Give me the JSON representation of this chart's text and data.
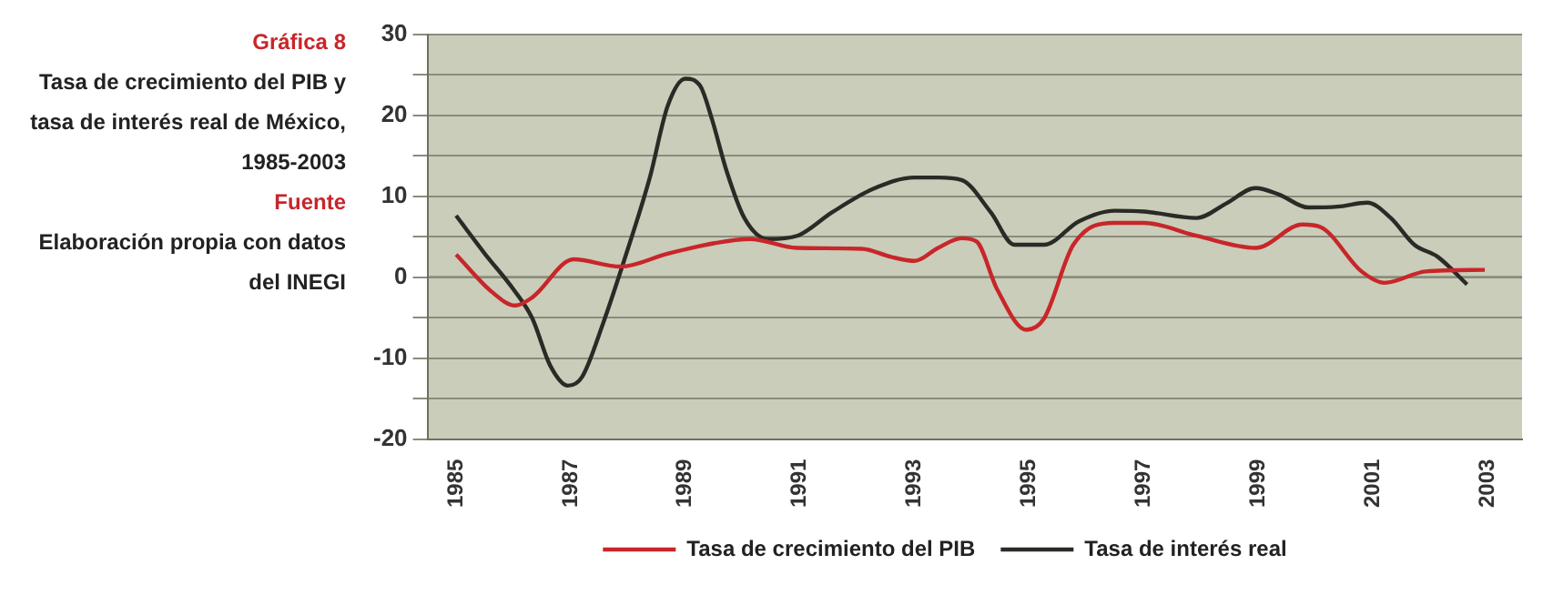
{
  "chart_data": {
    "type": "line",
    "title": "Gráfica 8",
    "subtitle": "Tasa de crecimiento del PIB y tasa de interés real de México, 1985-2003",
    "annotations": [
      "Fuente",
      "Elaboración propia con datos del INEGI"
    ],
    "series": [
      {
        "name": "Tasa de crecimiento del PIB",
        "color": "#c8262a",
        "x": [
          1985,
          1985.62,
          1986.03,
          1986.33,
          1987.05,
          1987.87,
          1988.69,
          1989.51,
          1990.13,
          1990.95,
          1992.08,
          1992.59,
          1993,
          1993.41,
          1993.82,
          1994.08,
          1994.44,
          1994.95,
          1995.26,
          1995.77,
          1996.49,
          1997,
          1997.92,
          1998.95,
          1999.77,
          2000.08,
          2000.8,
          2001.2,
          2001.92,
          2002.95
        ],
        "values": [
          2.8,
          -1.8,
          -3.5,
          -2.5,
          2.2,
          1.3,
          2.9,
          4.2,
          4.7,
          3.6,
          3.5,
          2.5,
          2,
          3.6,
          4.8,
          4.4,
          -1.5,
          -6.5,
          -5.1,
          4,
          6.7,
          6.7,
          5.1,
          3.6,
          6.5,
          6.2,
          0.7,
          -0.7,
          0.7,
          0.9
        ]
      },
      {
        "name": "Tasa de interés real",
        "color": "#2a2a26",
        "x": [
          1985,
          1985.5,
          1986,
          1986.33,
          1986.64,
          1986.95,
          1987.2,
          1987.56,
          1987.97,
          1988.38,
          1988.69,
          1989,
          1989.26,
          1989.46,
          1989.72,
          1990.03,
          1990.44,
          1990.95,
          1991.56,
          1992.28,
          1993,
          1993.41,
          1993.82,
          1994.33,
          1994.74,
          1995.26,
          1995.87,
          1996.49,
          1997,
          1997.92,
          1998.44,
          1998.95,
          1999.36,
          1999.87,
          2000.38,
          2000.9,
          2001.31,
          2001.72,
          2002.13,
          2002.64
        ],
        "values": [
          7.6,
          2.9,
          -1.5,
          -5.1,
          -10.9,
          -13.4,
          -12.3,
          -5.8,
          2.9,
          12.3,
          21.1,
          24.5,
          23.6,
          19.6,
          13.1,
          7.3,
          4.7,
          5.1,
          8,
          10.9,
          12.3,
          12.3,
          12,
          8,
          4,
          4,
          6.9,
          8.2,
          8.1,
          7.3,
          9.1,
          11,
          10.2,
          8.6,
          8.7,
          9.2,
          7.3,
          4,
          2.5,
          -0.9
        ]
      }
    ],
    "xlim": [
      1984.5,
      2003.6
    ],
    "xticks": [
      1985,
      1987,
      1989,
      1991,
      1993,
      1995,
      1997,
      1999,
      2001,
      2003
    ],
    "ylim": [
      -20,
      30
    ],
    "yticks": [
      -20,
      {
        "value": -15,
        "label": null
      },
      -10,
      {
        "value": -5,
        "label": null
      },
      0,
      {
        "value": 5,
        "label": null
      },
      10,
      {
        "value": 15,
        "label": null
      },
      20,
      {
        "value": 25,
        "label": null
      },
      30
    ],
    "grid": "y",
    "legend": "bottom",
    "marker": "none",
    "line_style": "solid"
  }
}
